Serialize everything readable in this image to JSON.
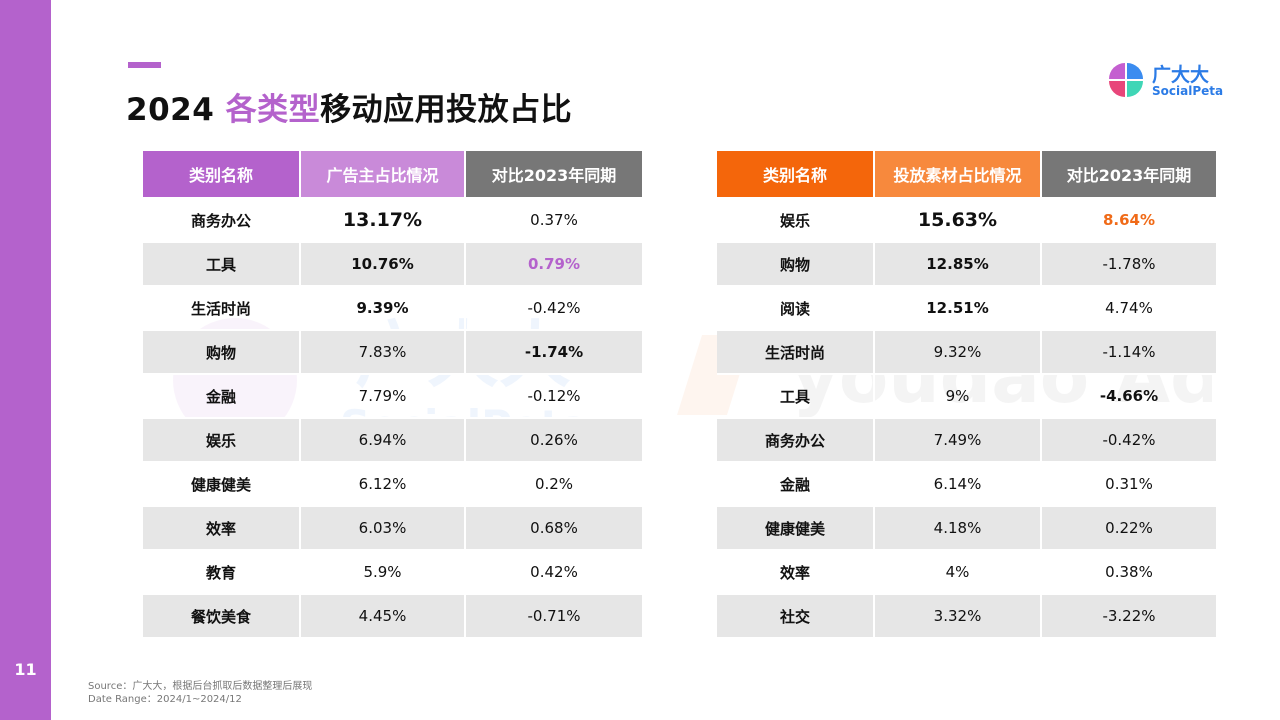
{
  "page": {
    "number": "11",
    "title_year": "2024 ",
    "title_highlight": "各类型",
    "title_rest": "移动应用投放占比"
  },
  "logo": {
    "cn": "广大大",
    "en": "SocialPeta"
  },
  "watermarks": {
    "left_cn": "广大大",
    "left_en": "SocialPeta",
    "right": "youdao Ads"
  },
  "left_table": {
    "headers": [
      "类别名称",
      "广告主占比情况",
      "对比2023年同期"
    ],
    "rows": [
      {
        "category": "商务办公",
        "share": "13.17%",
        "yoy": "0.37%"
      },
      {
        "category": "工具",
        "share": "10.76%",
        "yoy": "0.79%"
      },
      {
        "category": "生活时尚",
        "share": "9.39%",
        "yoy": "-0.42%"
      },
      {
        "category": "购物",
        "share": "7.83%",
        "yoy": "-1.74%"
      },
      {
        "category": "金融",
        "share": "7.79%",
        "yoy": "-0.12%"
      },
      {
        "category": "娱乐",
        "share": "6.94%",
        "yoy": "0.26%"
      },
      {
        "category": "健康健美",
        "share": "6.12%",
        "yoy": "0.2%"
      },
      {
        "category": "效率",
        "share": "6.03%",
        "yoy": "0.68%"
      },
      {
        "category": "教育",
        "share": "5.9%",
        "yoy": "0.42%"
      },
      {
        "category": "餐饮美食",
        "share": "4.45%",
        "yoy": "-0.71%"
      }
    ]
  },
  "right_table": {
    "headers": [
      "类别名称",
      "投放素材占比情况",
      "对比2023年同期"
    ],
    "rows": [
      {
        "category": "娱乐",
        "share": "15.63%",
        "yoy": "8.64%"
      },
      {
        "category": "购物",
        "share": "12.85%",
        "yoy": "-1.78%"
      },
      {
        "category": "阅读",
        "share": "12.51%",
        "yoy": "4.74%"
      },
      {
        "category": "生活时尚",
        "share": "9.32%",
        "yoy": "-1.14%"
      },
      {
        "category": "工具",
        "share": "9%",
        "yoy": "-4.66%"
      },
      {
        "category": "商务办公",
        "share": "7.49%",
        "yoy": "-0.42%"
      },
      {
        "category": "金融",
        "share": "6.14%",
        "yoy": "0.31%"
      },
      {
        "category": "健康健美",
        "share": "4.18%",
        "yoy": "0.22%"
      },
      {
        "category": "效率",
        "share": "4%",
        "yoy": "0.38%"
      },
      {
        "category": "社交",
        "share": "3.32%",
        "yoy": "-3.22%"
      }
    ]
  },
  "footer": {
    "source": "Source：广大大，根据后台抓取后数据整理后展现",
    "date_range": "Date Range：2024/1~2024/12"
  },
  "colors": {
    "purple": "#b462cc",
    "orange": "#f4660b",
    "gray_header": "#777777",
    "logo_blue": "#2b7be6"
  }
}
